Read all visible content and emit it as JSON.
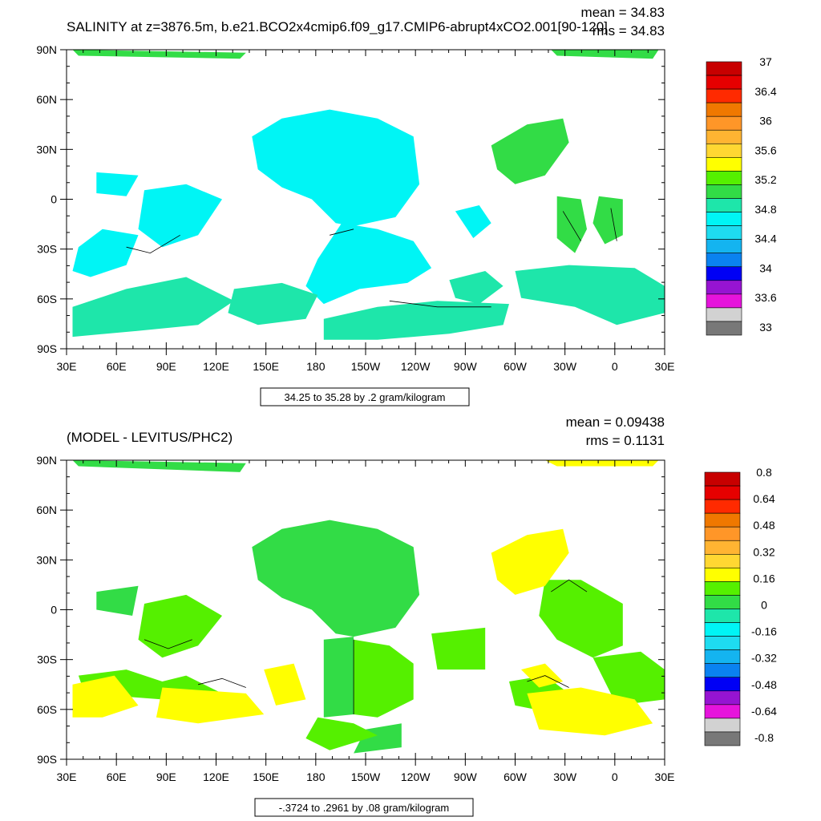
{
  "top": {
    "title": "SALINITY at z=3876.5m, b.e21.BCO2x4cmip6.f09_g17.CMIP6-abrupt4xCO2.001[90-120]",
    "mean_text": "mean = 34.83",
    "rms_text": "rms = 34.83",
    "info_text": "34.25 to 35.28 by .2 gram/kilogram",
    "colorbar": {
      "labels": [
        "37",
        "36.4",
        "36",
        "35.6",
        "35.2",
        "34.8",
        "34.4",
        "34",
        "33.6",
        "33"
      ],
      "colors": [
        "#c80000",
        "#e60000",
        "#ff2a00",
        "#f07800",
        "#ff9628",
        "#ffb432",
        "#ffd732",
        "#ffff00",
        "#55f000",
        "#32dc46",
        "#1ee6aa",
        "#00f5f5",
        "#1edcf0",
        "#14b4f0",
        "#0a82f0",
        "#0000f5",
        "#9614d2",
        "#e614dc",
        "#d2d2d2",
        "#787878"
      ]
    },
    "fields": [
      {
        "name": "cyan-water",
        "color": "#00f5f5"
      },
      {
        "name": "teal-water",
        "color": "#1ee6aa"
      },
      {
        "name": "green-water",
        "color": "#32dc46"
      }
    ]
  },
  "bottom": {
    "title": "(MODEL - LEVITUS/PHC2)",
    "mean_text": "mean = 0.09438",
    "rms_text": "rms = 0.1131",
    "info_text": "-.3724 to .2961 by .08 gram/kilogram",
    "colorbar": {
      "labels": [
        "0.8",
        "0.64",
        "0.48",
        "0.32",
        "0.16",
        "0",
        "-0.16",
        "-0.32",
        "-0.48",
        "-0.64",
        "-0.8"
      ],
      "colors": [
        "#c80000",
        "#e60000",
        "#ff2a00",
        "#f07800",
        "#ff9628",
        "#ffb432",
        "#ffd732",
        "#ffff00",
        "#55f000",
        "#32dc46",
        "#1ee6aa",
        "#00f5f5",
        "#1edcf0",
        "#14b4f0",
        "#0a82f0",
        "#0000f5",
        "#9614d2",
        "#e614dc",
        "#d2d2d2",
        "#787878"
      ]
    },
    "fields": [
      {
        "name": "green-anomaly",
        "color": "#32dc46"
      },
      {
        "name": "lime-anomaly",
        "color": "#55f000"
      },
      {
        "name": "yellow-anomaly",
        "color": "#ffff00"
      }
    ]
  },
  "axes": {
    "lat_labels": [
      "90N",
      "60N",
      "30N",
      "0",
      "30S",
      "60S",
      "90S"
    ],
    "lon_labels": [
      "30E",
      "60E",
      "90E",
      "120E",
      "150E",
      "180",
      "150W",
      "120W",
      "90W",
      "60W",
      "30W",
      "0",
      "30E"
    ]
  }
}
